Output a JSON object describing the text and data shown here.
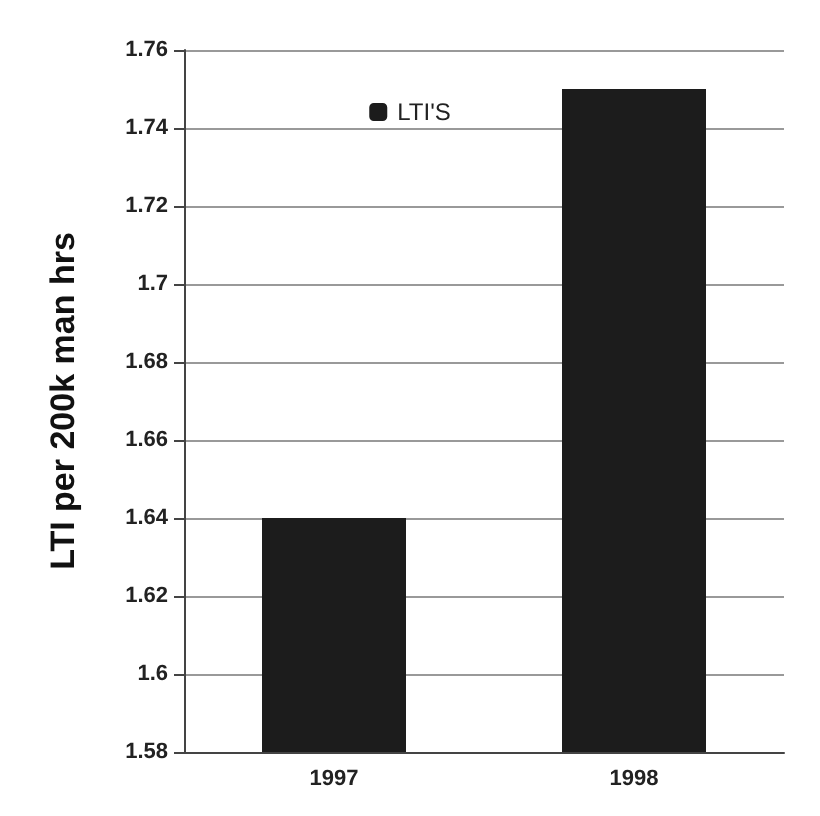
{
  "chart_data": {
    "type": "bar",
    "ylabel": "LTI per 200k man hrs",
    "categories": [
      "1997",
      "1998"
    ],
    "series": [
      {
        "name": "LTI'S",
        "color": "#1c1c1c",
        "values": [
          1.64,
          1.75
        ]
      }
    ],
    "ylim": [
      1.58,
      1.76
    ],
    "yticks": [
      1.58,
      1.6,
      1.62,
      1.64,
      1.66,
      1.68,
      1.7,
      1.72,
      1.74,
      1.76
    ],
    "grid": "y",
    "legend": "top"
  }
}
